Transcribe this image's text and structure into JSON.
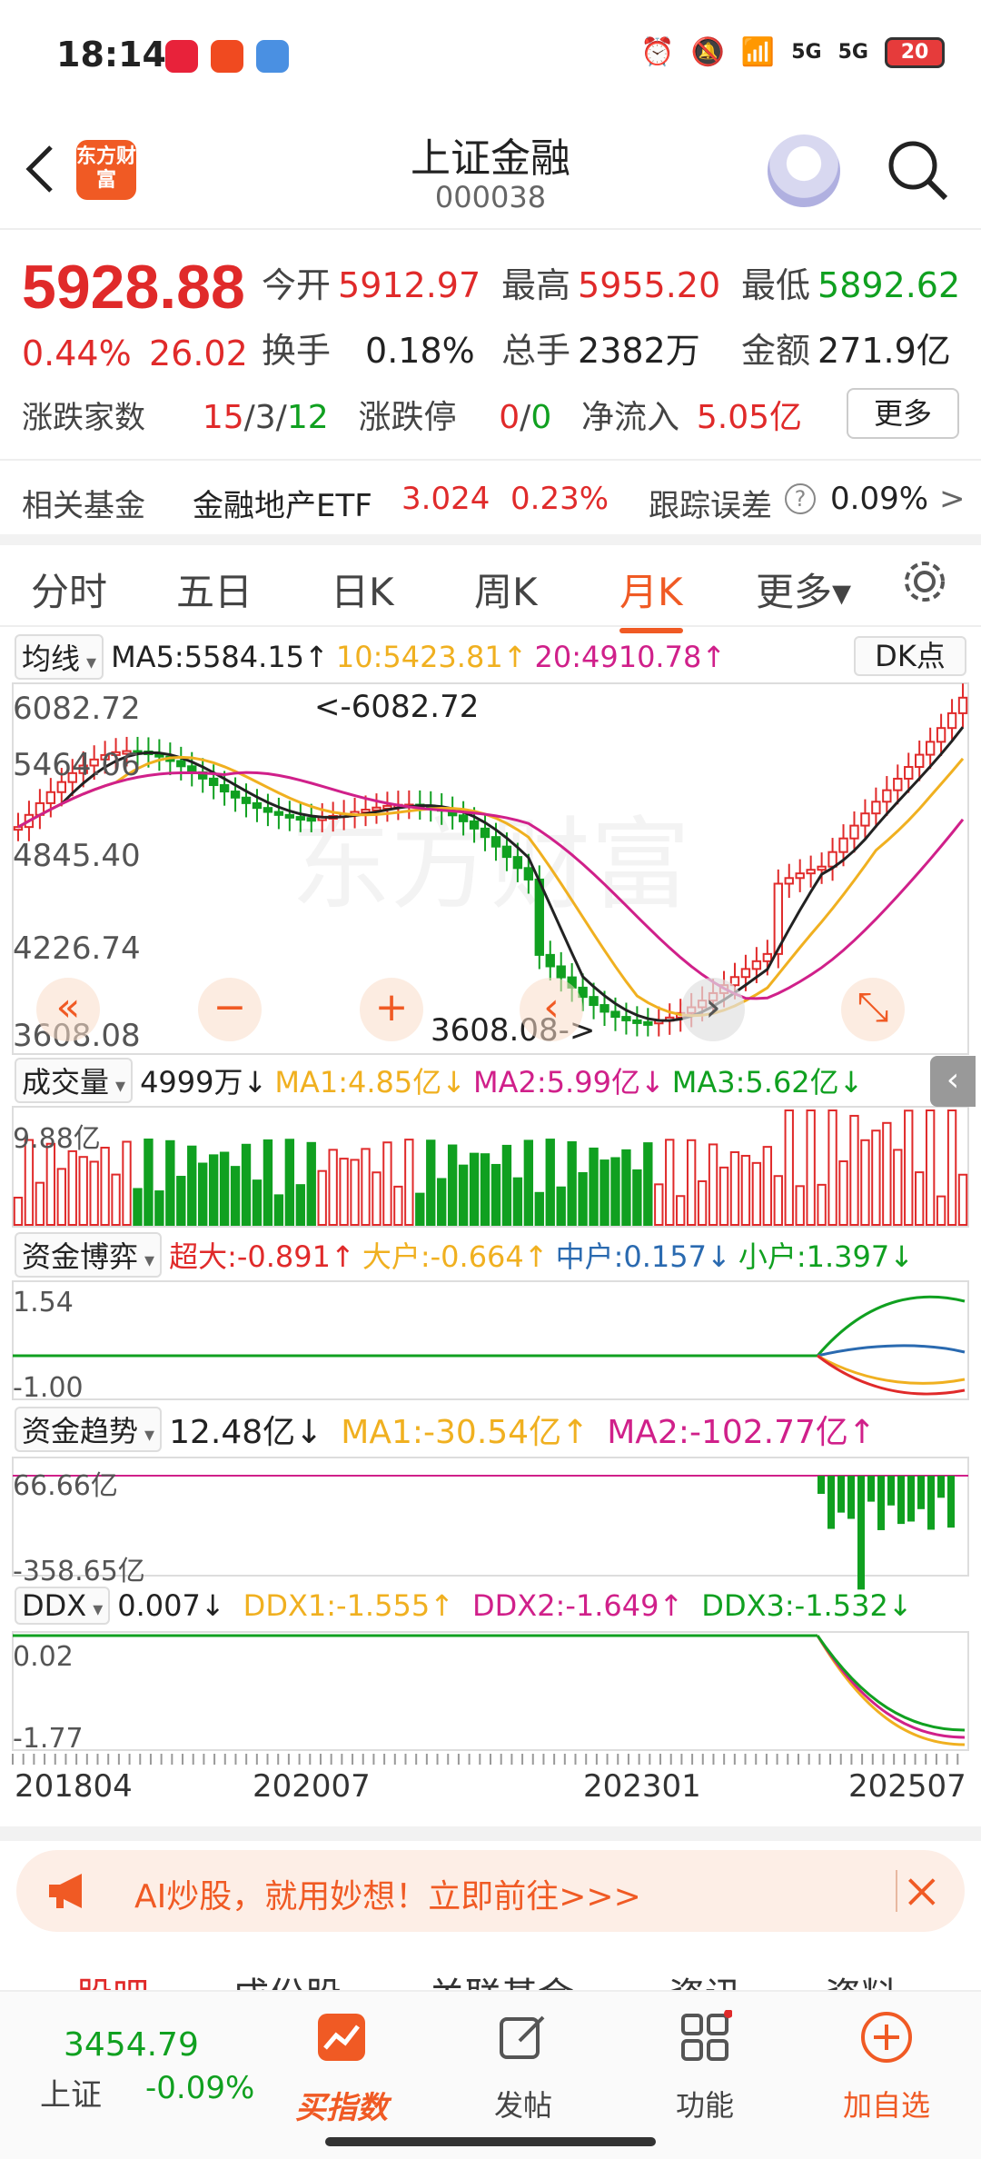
{
  "status_bar": {
    "time": "18:14",
    "battery": "20",
    "net1": "5G",
    "net2": "5G"
  },
  "header": {
    "title": "上证金融",
    "code": "000038",
    "logo": "东方财富"
  },
  "quote": {
    "price": "5928.88",
    "change_pct": "0.44%",
    "change_val": "26.02",
    "open_label": "今开",
    "open": "5912.97",
    "high_label": "最高",
    "high": "5955.20",
    "low_label": "最低",
    "low": "5892.62",
    "turnover_label": "换手",
    "turnover": "0.18%",
    "volume_label": "总手",
    "volume": "2382万",
    "amount_label": "金额",
    "amount": "271.9亿",
    "breadth_label": "涨跌家数",
    "breadth_up": "15",
    "breadth_flat": "3",
    "breadth_down": "12",
    "limit_label": "涨跌停",
    "limit_up": "0",
    "limit_down": "0",
    "inflow_label": "净流入",
    "inflow": "5.05亿",
    "more_label": "更多",
    "fund_label": "相关基金",
    "fund_name": "金融地产ETF",
    "fund_price": "3.024",
    "fund_pct": "0.23%",
    "track_label": "跟踪误差",
    "track_val": "0.09%",
    "track_arrow": ">"
  },
  "tabs": [
    {
      "label": "分时"
    },
    {
      "label": "五日"
    },
    {
      "label": "日K"
    },
    {
      "label": "周K"
    },
    {
      "label": "月K",
      "active": true
    },
    {
      "label": "更多▾"
    }
  ],
  "kline": {
    "indicator": "均线",
    "ma5": "MA5:5584.15↑",
    "ma10": "10:5423.81↑",
    "ma20": "20:4910.78↑",
    "dk_label": "DK点",
    "y_labels": [
      "6082.72",
      "5464.06",
      "4845.40",
      "4226.74",
      "3608.08"
    ],
    "high_mark": "<-6082.72",
    "low_mark": "3608.08->",
    "controls": [
      "«",
      "−",
      "+",
      "‹",
      "›",
      "⤡"
    ]
  },
  "volume": {
    "indicator": "成交量",
    "value": "4999万↓",
    "ma1": "MA1:4.85亿↓",
    "ma2": "MA2:5.99亿↓",
    "ma3": "MA3:5.62亿↓",
    "y_top": "9.88亿"
  },
  "capital_game": {
    "indicator": "资金博弈",
    "super": "超大:-0.891↑",
    "large": "大户:-0.664↑",
    "medium": "中户:0.157↓",
    "small": "小户:1.397↓",
    "y_top": "1.54",
    "y_bottom": "-1.00"
  },
  "capital_trend": {
    "indicator": "资金趋势",
    "value": "12.48亿↓",
    "ma1": "MA1:-30.54亿↑",
    "ma2": "MA2:-102.77亿↑",
    "y_top": "66.66亿",
    "y_bottom": "-358.65亿"
  },
  "ddx": {
    "indicator": "DDX",
    "value": "0.007↓",
    "ddx1": "DDX1:-1.555↑",
    "ddx2": "DDX2:-1.649↑",
    "ddx3": "DDX3:-1.532↓",
    "y_top": "0.02",
    "y_bottom": "-1.77"
  },
  "x_axis": [
    "201804",
    "202007",
    "202301",
    "202507"
  ],
  "ad": {
    "text": "AI炒股，就用妙想！立即前往>>>"
  },
  "section_tabs": [
    "股吧",
    "成份股",
    "关联基金",
    "资讯",
    "资料"
  ],
  "bottom_nav": {
    "index_value": "3454.79",
    "index_name": "上证",
    "index_pct": "-0.09%",
    "items": [
      {
        "label": "买指数"
      },
      {
        "label": "发帖"
      },
      {
        "label": "功能"
      },
      {
        "label": "加自选"
      }
    ]
  },
  "colors": {
    "up": "#e02a2a",
    "down": "#10a020",
    "accent": "#f05a24",
    "ma5": "#222222",
    "ma10": "#f0b020",
    "ma20": "#d0208a"
  },
  "chart_data": {
    "type": "candlestick",
    "y_range": [
      3608.08,
      6082.72
    ],
    "y_ticks": [
      6082.72,
      5464.06,
      4845.4,
      4226.74,
      3608.08
    ],
    "x_ticks": [
      "201804",
      "202007",
      "202301",
      "202507"
    ],
    "high": 6082.72,
    "low": 3608.08,
    "ma": {
      "MA5": 5584.15,
      "MA10": 5423.81,
      "MA20": 4910.78
    }
  }
}
